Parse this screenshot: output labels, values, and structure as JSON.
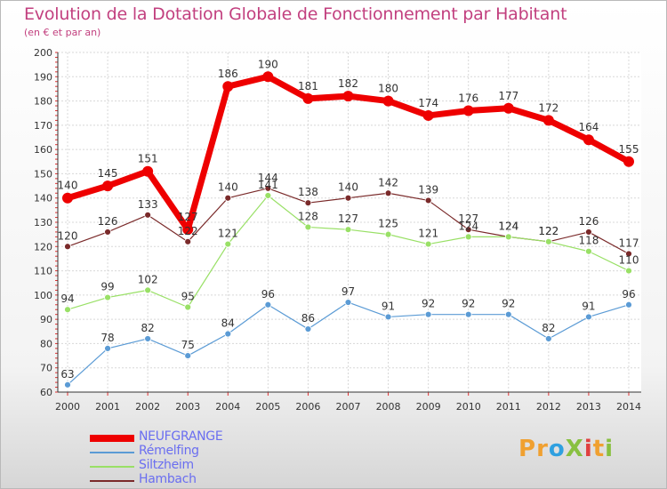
{
  "title": "Evolution de la Dotation Globale de Fonctionnement par Habitant",
  "subtitle": "(en € et par an)",
  "logo": {
    "text": "ProXiti",
    "colors": [
      "#f0a030",
      "#f0a030",
      "#2fa0e0",
      "#88c040",
      "#e04040",
      "#f0a030",
      "#88c040"
    ]
  },
  "chart_data": {
    "type": "line",
    "x": [
      2000,
      2001,
      2002,
      2003,
      2004,
      2005,
      2006,
      2007,
      2008,
      2009,
      2010,
      2011,
      2012,
      2013,
      2014
    ],
    "ylim": [
      60,
      200
    ],
    "yticks": [
      60,
      70,
      80,
      90,
      100,
      110,
      120,
      130,
      140,
      150,
      160,
      170,
      180,
      190,
      200
    ],
    "grid": true,
    "legend_position": "bottom-left",
    "series": [
      {
        "name": "NEUFGRANGE",
        "color": "#ee0000",
        "width": 7,
        "marker": 6,
        "values": [
          140,
          145,
          151,
          127,
          186,
          190,
          181,
          182,
          180,
          174,
          176,
          177,
          172,
          164,
          155
        ]
      },
      {
        "name": "Rémelfing",
        "color": "#5b9bd5",
        "width": 1.2,
        "marker": 3.5,
        "values": [
          63,
          78,
          82,
          75,
          84,
          96,
          86,
          97,
          91,
          92,
          92,
          92,
          82,
          91,
          96
        ]
      },
      {
        "name": "Siltzheim",
        "color": "#99e066",
        "width": 1.2,
        "marker": 3.5,
        "values": [
          94,
          99,
          102,
          95,
          121,
          141,
          128,
          127,
          125,
          121,
          124,
          124,
          122,
          118,
          110
        ]
      },
      {
        "name": "Hambach",
        "color": "#7a2a2a",
        "width": 1.2,
        "marker": 3.5,
        "values": [
          120,
          126,
          133,
          122,
          140,
          144,
          138,
          140,
          142,
          139,
          127,
          124,
          122,
          126,
          117
        ]
      }
    ]
  }
}
